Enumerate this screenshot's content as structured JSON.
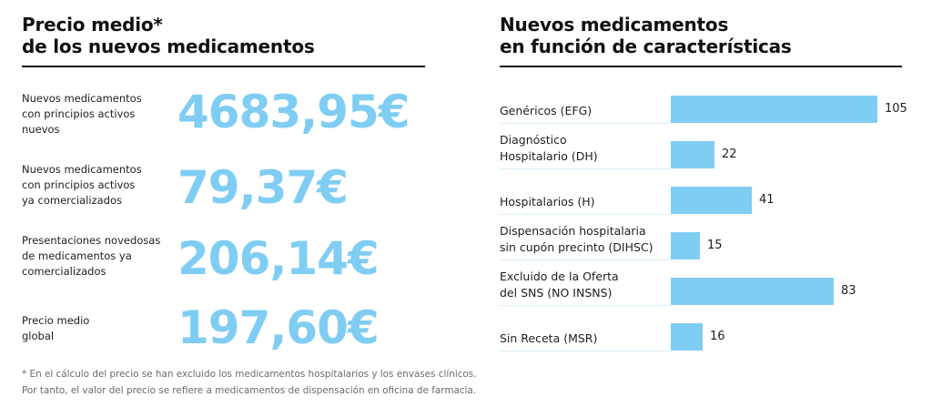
{
  "left_panel": {
    "title_line1": "Precio medio*",
    "title_line2": "de los nuevos medicamentos",
    "items": [
      {
        "label_lines": [
          "Nuevos medicamentos",
          "con principios activos",
          "nuevos"
        ],
        "value": "4683,95€"
      },
      {
        "label_lines": [
          "Nuevos medicamentos",
          "con principios activos",
          "ya comercializados"
        ],
        "value": "79,37€"
      },
      {
        "label_lines": [
          "Presentaciones novedosas",
          "de medicamentos ya",
          "comercializados"
        ],
        "value": "206,14€"
      },
      {
        "label_lines": [
          "Precio medio",
          "global"
        ],
        "value": "197,60€"
      }
    ],
    "footnote_line1": "* En el cálculo del precio se han excluido los medicamentos hospitalarios y los envases clínicos.",
    "footnote_line2": "Por tanto, el valor del precio se refiere a medicamentos de dispensación en oficina de farmacia.",
    "accent_color": "#80cdf3"
  },
  "chart_data": {
    "type": "bar",
    "orientation": "horizontal",
    "title": "Nuevos medicamentos en función de características",
    "title_line1": "Nuevos medicamentos",
    "title_line2": "en función de características",
    "categories": [
      "Genéricos (EFG)",
      "Diagnóstico Hospitalario (DH)",
      "Hospitalarios (H)",
      "Dispensación hospitalaria sin cupón precinto (DIHSC)",
      "Excluido de la Oferta del SNS (NO INSNS)",
      "Sin Receta (MSR)"
    ],
    "category_lines": [
      [
        "Genéricos (EFG)"
      ],
      [
        "Diagnóstico",
        "Hospitalario (DH)"
      ],
      [
        "Hospitalarios (H)"
      ],
      [
        "Dispensación hospitalaria",
        "sin cupón precinto (DIHSC)"
      ],
      [
        "Excluido de la Oferta",
        "del SNS (NO INSNS)"
      ],
      [
        "Sin Receta (MSR)"
      ]
    ],
    "values": [
      105,
      22,
      41,
      15,
      83,
      16
    ],
    "data_labels": [
      "105",
      "22",
      "41",
      "15",
      "83",
      "16"
    ],
    "xlabel": "",
    "ylabel": "",
    "xlim": [
      0,
      105
    ],
    "grid": false,
    "legend": "none",
    "bar_color": "#80cdf3"
  }
}
